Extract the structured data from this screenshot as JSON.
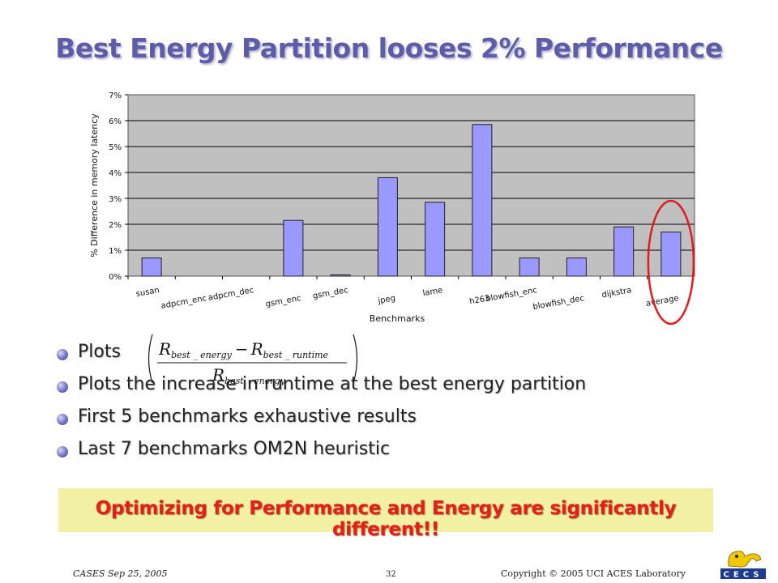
{
  "slide": {
    "title": "Best Energy Partition looses 2% Performance",
    "bullets": [
      "Plots",
      "Plots the increase in runtime at the best energy partition",
      "First 5 benchmarks exhaustive results",
      "Last 7 benchmarks OM2N heuristic"
    ],
    "formula": {
      "numerator_left": "R",
      "numerator_left_sub": "best _ energy",
      "minus": "−",
      "numerator_right": "R",
      "numerator_right_sub": "best _ runtime",
      "denominator": "R",
      "denominator_sub": "best _ energy"
    },
    "callout": "Optimizing for Performance and Energy are significantly different!!",
    "footer": {
      "left": "CASES  Sep 25, 2005",
      "center": "32",
      "right": "Copyright © 2005  UCI ACES Laboratory"
    },
    "logo_text": "CECS",
    "colors": {
      "title": "#5c5ca8",
      "bar": "#9999ff",
      "plot_bg": "#c0c0c0",
      "highlight": "#e21b1b",
      "callout_bg": "#f2f0a2",
      "callout_text": "#e81c1c"
    }
  },
  "chart_data": {
    "type": "bar",
    "categories": [
      "susan",
      "adpcm_enc",
      "adpcm_dec",
      "gsm_enc",
      "gsm_dec",
      "jpeg",
      "lame",
      "h263",
      "blowfish_enc",
      "blowfish_dec",
      "dijkstra",
      "average"
    ],
    "values": [
      0.7,
      0.0,
      0.0,
      2.15,
      0.05,
      3.8,
      2.85,
      5.85,
      0.7,
      0.7,
      1.9,
      1.7
    ],
    "xlabel": "Benchmarks",
    "ylabel": "% Difference in  memory latency",
    "ylim": [
      0,
      7
    ],
    "yticks": [
      "0%",
      "1%",
      "2%",
      "3%",
      "4%",
      "5%",
      "6%",
      "7%"
    ],
    "grid": true,
    "highlighted_category": "average"
  }
}
